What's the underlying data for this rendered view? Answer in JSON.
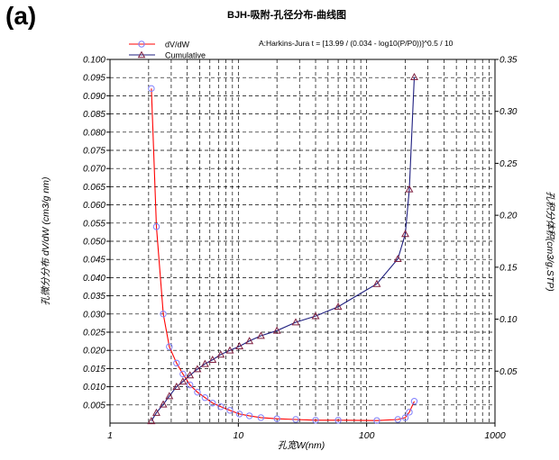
{
  "panel_label": "(a)",
  "chart_data": {
    "type": "line",
    "title": "BJH-吸附-孔径分布-曲线图",
    "annotation": "A:Harkins-Jura  t = [13.99 / (0.034 - log10(P/P0))]^0.5 / 10",
    "xlabel": "孔宽W(nm)",
    "ylabel_left": "孔微分分布 dV/dW (cm3/g nm)",
    "ylabel_right": "孔积分体积(cm3/g,STP)",
    "x_scale": "log",
    "xlim": [
      1,
      1000
    ],
    "x_ticks": [
      1,
      10,
      100,
      1000
    ],
    "x_tick_labels": [
      "1",
      "10",
      "100",
      "1000"
    ],
    "ylim_left": [
      0,
      0.1
    ],
    "y_ticks_left": [
      "0.005",
      "0.010",
      "0.015",
      "0.020",
      "0.025",
      "0.030",
      "0.035",
      "0.040",
      "0.045",
      "0.050",
      "0.055",
      "0.060",
      "0.065",
      "0.070",
      "0.075",
      "0.080",
      "0.085",
      "0.090",
      "0.095",
      "0.100"
    ],
    "ylim_right": [
      0,
      0.35
    ],
    "y_ticks_right": [
      "0.05",
      "0.10",
      "0.15",
      "0.20",
      "0.25",
      "0.30",
      "0.35"
    ],
    "grid": true,
    "legend_position": "top-left",
    "series": [
      {
        "name": "dV/dW",
        "axis": "left",
        "color": "#ff0000",
        "marker_color": "#7f7fff",
        "marker": "circle",
        "x": [
          2.1,
          2.3,
          2.6,
          2.9,
          3.3,
          3.7,
          4.2,
          4.8,
          5.5,
          6.3,
          7.3,
          8.6,
          10.2,
          12.2,
          15.0,
          20.0,
          28.0,
          40.0,
          60.0,
          120.0,
          175.0,
          200.0,
          215.0,
          235.0
        ],
        "y": [
          0.092,
          0.054,
          0.03,
          0.021,
          0.0165,
          0.0135,
          0.0105,
          0.0085,
          0.007,
          0.0055,
          0.0045,
          0.0035,
          0.0025,
          0.002,
          0.0015,
          0.0012,
          0.001,
          0.0008,
          0.0008,
          0.0007,
          0.001,
          0.0015,
          0.003,
          0.006
        ]
      },
      {
        "name": "Cumulative",
        "axis": "right",
        "color": "#1f1f7f",
        "marker_color": "#7f1f3f",
        "marker": "triangle",
        "x": [
          2.1,
          2.3,
          2.6,
          2.9,
          3.3,
          3.7,
          4.2,
          4.8,
          5.5,
          6.3,
          7.3,
          8.6,
          10.2,
          12.2,
          15.0,
          20.0,
          28.0,
          40.0,
          60.0,
          120.0,
          175.0,
          200.0,
          215.0,
          235.0
        ],
        "y": [
          0.002,
          0.01,
          0.018,
          0.026,
          0.035,
          0.04,
          0.046,
          0.052,
          0.057,
          0.061,
          0.066,
          0.07,
          0.074,
          0.079,
          0.084,
          0.089,
          0.097,
          0.103,
          0.112,
          0.134,
          0.158,
          0.182,
          0.225,
          0.333
        ]
      }
    ]
  }
}
